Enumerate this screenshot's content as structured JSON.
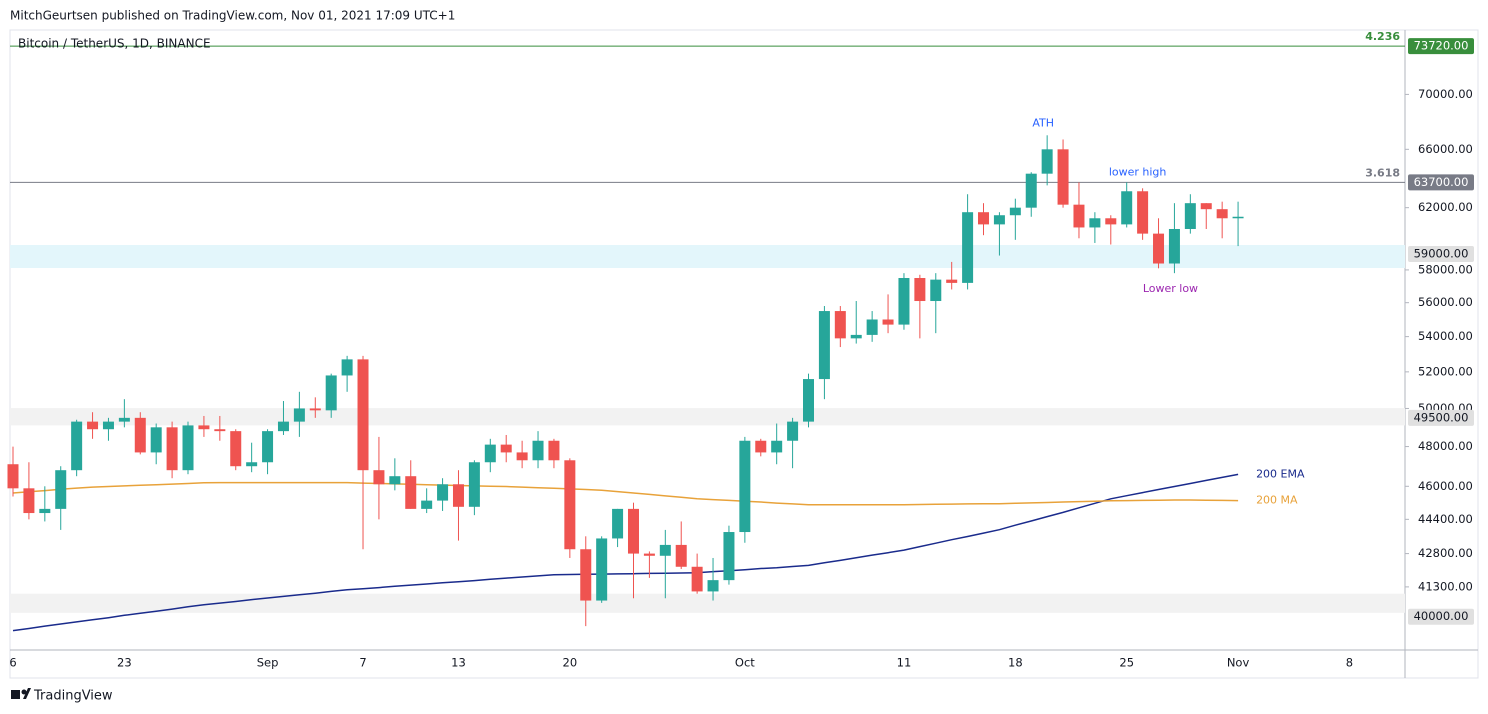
{
  "header": {
    "publisher": "MitchGeurtsen published on TradingView.com, Nov 01, 2021 17:09 UTC+1"
  },
  "footer": {
    "brand": "TradingView"
  },
  "chart_data": {
    "type": "candlestick",
    "title": "Bitcoin / TetherUS, 1D, BINANCE",
    "log_scale": true,
    "up_color": "#26a69a",
    "down_color": "#ef5350",
    "ylim": [
      38600,
      75000
    ],
    "yticks": [
      {
        "value": 41300,
        "label": "41300.00"
      },
      {
        "value": 42800,
        "label": "42800.00"
      },
      {
        "value": 44400,
        "label": "44400.00"
      },
      {
        "value": 46000,
        "label": "46000.00"
      },
      {
        "value": 48000,
        "label": "48000.00"
      },
      {
        "value": 50000,
        "label": "50000.00"
      },
      {
        "value": 52000,
        "label": "52000.00"
      },
      {
        "value": 54000,
        "label": "54000.00"
      },
      {
        "value": 56000,
        "label": "56000.00"
      },
      {
        "value": 58000,
        "label": "58000.00"
      },
      {
        "value": 62000,
        "label": "62000.00"
      },
      {
        "value": 66000,
        "label": "66000.00"
      },
      {
        "value": 70000,
        "label": "70000.00"
      }
    ],
    "categories": [
      "6",
      null,
      null,
      null,
      null,
      null,
      null,
      "23",
      null,
      null,
      null,
      null,
      null,
      null,
      null,
      null,
      "Sep",
      null,
      null,
      null,
      null,
      null,
      "7",
      null,
      null,
      null,
      null,
      null,
      "13",
      null,
      null,
      null,
      null,
      null,
      null,
      "20",
      null,
      null,
      null,
      null,
      null,
      null,
      null,
      null,
      null,
      null,
      "Oct",
      null,
      null,
      null,
      null,
      null,
      null,
      null,
      null,
      null,
      "11",
      null,
      null,
      null,
      null,
      null,
      null,
      "18",
      null,
      null,
      null,
      null,
      null,
      null,
      "25",
      null,
      null,
      null,
      null,
      null,
      null,
      "Nov",
      null,
      null,
      null,
      null,
      null,
      null,
      "8"
    ],
    "open": [
      47100,
      45900,
      44700,
      44900,
      46800,
      49300,
      48900,
      49300,
      49500,
      47700,
      49000,
      46800,
      49100,
      48900,
      48800,
      47000,
      47200,
      48800,
      49300,
      50000,
      49900,
      51800,
      52700,
      46800,
      46100,
      46500,
      44900,
      45300,
      46100,
      45000,
      47200,
      48100,
      47700,
      47300,
      48300,
      47300,
      43000,
      40700,
      43500,
      44900,
      42800,
      42700,
      43200,
      42200,
      41100,
      41600,
      43800,
      48300,
      47700,
      48300,
      49300,
      51600,
      55500,
      53900,
      54100,
      55000,
      54700,
      57500,
      56100,
      57400,
      57200,
      61700,
      60900,
      61500,
      62000,
      64300,
      66000,
      62200,
      60700,
      61300,
      60900,
      63100,
      60300,
      58400,
      60600,
      62300,
      61900,
      61300,
      null,
      null,
      null,
      null,
      null,
      null,
      null
    ],
    "high": [
      48000,
      47200,
      46000,
      47000,
      49400,
      49800,
      49500,
      50500,
      49800,
      49200,
      49300,
      49300,
      49600,
      49600,
      48900,
      48200,
      48900,
      50400,
      50900,
      50600,
      51900,
      52900,
      52900,
      48500,
      47400,
      47300,
      45900,
      46400,
      46800,
      47300,
      48400,
      48600,
      48300,
      48800,
      48400,
      47400,
      43600,
      43600,
      44900,
      45200,
      42900,
      43900,
      44300,
      42800,
      42600,
      44100,
      48500,
      48400,
      49200,
      49500,
      51900,
      55800,
      55800,
      56100,
      55500,
      56500,
      57800,
      57700,
      57800,
      58500,
      62900,
      62300,
      61700,
      62600,
      64400,
      67000,
      66700,
      63700,
      61700,
      61500,
      63700,
      63300,
      61300,
      62300,
      62900,
      62300,
      62400,
      62400,
      null,
      null,
      null,
      null,
      null,
      null,
      null
    ],
    "low": [
      45500,
      44400,
      44300,
      43900,
      46500,
      48400,
      48300,
      49000,
      47600,
      47100,
      46400,
      46600,
      48500,
      48300,
      46800,
      46700,
      46600,
      48600,
      48500,
      49500,
      49500,
      50900,
      43000,
      44400,
      45800,
      44900,
      44700,
      44800,
      43400,
      44600,
      46700,
      47200,
      46900,
      46900,
      46900,
      42600,
      39600,
      40600,
      43100,
      40800,
      41700,
      40800,
      42100,
      41000,
      40700,
      41400,
      43300,
      47500,
      47100,
      46900,
      49000,
      50500,
      53400,
      53600,
      53700,
      54200,
      54400,
      53900,
      54200,
      56800,
      56800,
      60200,
      58900,
      59900,
      61400,
      63500,
      62000,
      60000,
      59700,
      59600,
      60700,
      59900,
      58100,
      57800,
      60300,
      60600,
      60000,
      59500,
      null,
      null,
      null,
      null,
      null,
      null,
      null
    ],
    "close": [
      45900,
      44700,
      44900,
      46800,
      49300,
      48900,
      49300,
      49500,
      47700,
      49000,
      46800,
      49100,
      48900,
      48800,
      47000,
      47200,
      48800,
      49300,
      50000,
      49900,
      51800,
      52700,
      46800,
      46100,
      46500,
      44900,
      45300,
      46100,
      45000,
      47200,
      48100,
      47700,
      47300,
      48300,
      47300,
      43000,
      40700,
      43500,
      44900,
      42800,
      42700,
      43200,
      42200,
      41100,
      41600,
      43800,
      48300,
      47700,
      48300,
      49300,
      51600,
      55500,
      53900,
      54100,
      55000,
      54700,
      57500,
      56100,
      57400,
      57200,
      61700,
      60900,
      61500,
      62000,
      64300,
      66000,
      62200,
      60700,
      61300,
      60900,
      63100,
      60300,
      58400,
      60600,
      62300,
      61900,
      61300,
      61400,
      null,
      null,
      null,
      null,
      null,
      null,
      null
    ],
    "series": [
      {
        "name": "200 EMA",
        "color": "#1a2b8c",
        "values": [
          39410,
          39500,
          39600,
          39690,
          39780,
          39870,
          39960,
          40060,
          40150,
          40240,
          40330,
          40430,
          40520,
          40590,
          40660,
          40740,
          40810,
          40880,
          40950,
          41020,
          41100,
          41170,
          41220,
          41270,
          41330,
          41380,
          41430,
          41480,
          41530,
          41580,
          41640,
          41690,
          41740,
          41790,
          41840,
          41850,
          41860,
          41870,
          41880,
          41890,
          41900,
          41910,
          41920,
          41930,
          41980,
          42020,
          42070,
          42120,
          42160,
          42210,
          42260,
          42380,
          42490,
          42610,
          42730,
          42840,
          42960,
          43120,
          43280,
          43440,
          43590,
          43750,
          43910,
          44120,
          44320,
          44530,
          44730,
          44950,
          45170,
          45390,
          45540,
          45690,
          45840,
          45990,
          46140,
          46290,
          46440,
          46590,
          null,
          null,
          null,
          null,
          null,
          null,
          null
        ]
      },
      {
        "name": "200 MA",
        "color": "#e8a23a",
        "values": [
          45670,
          45730,
          45790,
          45850,
          45910,
          45960,
          45990,
          46020,
          46050,
          46080,
          46110,
          46140,
          46170,
          46180,
          46180,
          46180,
          46180,
          46180,
          46180,
          46180,
          46180,
          46180,
          46160,
          46140,
          46120,
          46100,
          46080,
          46060,
          46040,
          46020,
          46000,
          45990,
          45960,
          45930,
          45900,
          45870,
          45840,
          45810,
          45740,
          45670,
          45600,
          45530,
          45460,
          45390,
          45350,
          45310,
          45270,
          45230,
          45180,
          45140,
          45100,
          45100,
          45100,
          45100,
          45100,
          45100,
          45100,
          45110,
          45120,
          45130,
          45140,
          45150,
          45150,
          45170,
          45190,
          45210,
          45230,
          45250,
          45270,
          45290,
          45300,
          45310,
          45320,
          45330,
          45330,
          45320,
          45310,
          45300,
          null,
          null,
          null,
          null,
          null,
          null,
          null
        ]
      }
    ],
    "levels": [
      {
        "value": 73720,
        "label": "73720.00",
        "ratio": "4.236",
        "color": "#388e3c"
      },
      {
        "value": 63700,
        "label": "63700.00",
        "ratio": "3.618",
        "color": "#787b86"
      }
    ],
    "zones": [
      {
        "value": 59000,
        "label": "59000.00",
        "range": [
          58120,
          59570
        ],
        "color": "#e3f6fb"
      },
      {
        "value": 49500,
        "label": "49500.00",
        "range": [
          49100,
          50020
        ],
        "color": "#f2f2f2"
      },
      {
        "value": 40000,
        "label": "40000.00",
        "range": [
          40170,
          41000
        ],
        "color": "#f2f2f2"
      }
    ],
    "annotations": [
      {
        "text": "ATH",
        "color": "#2962ff"
      },
      {
        "text": "lower high",
        "color": "#2962ff"
      },
      {
        "text": "Lower low",
        "color": "#9c27b0"
      }
    ]
  }
}
